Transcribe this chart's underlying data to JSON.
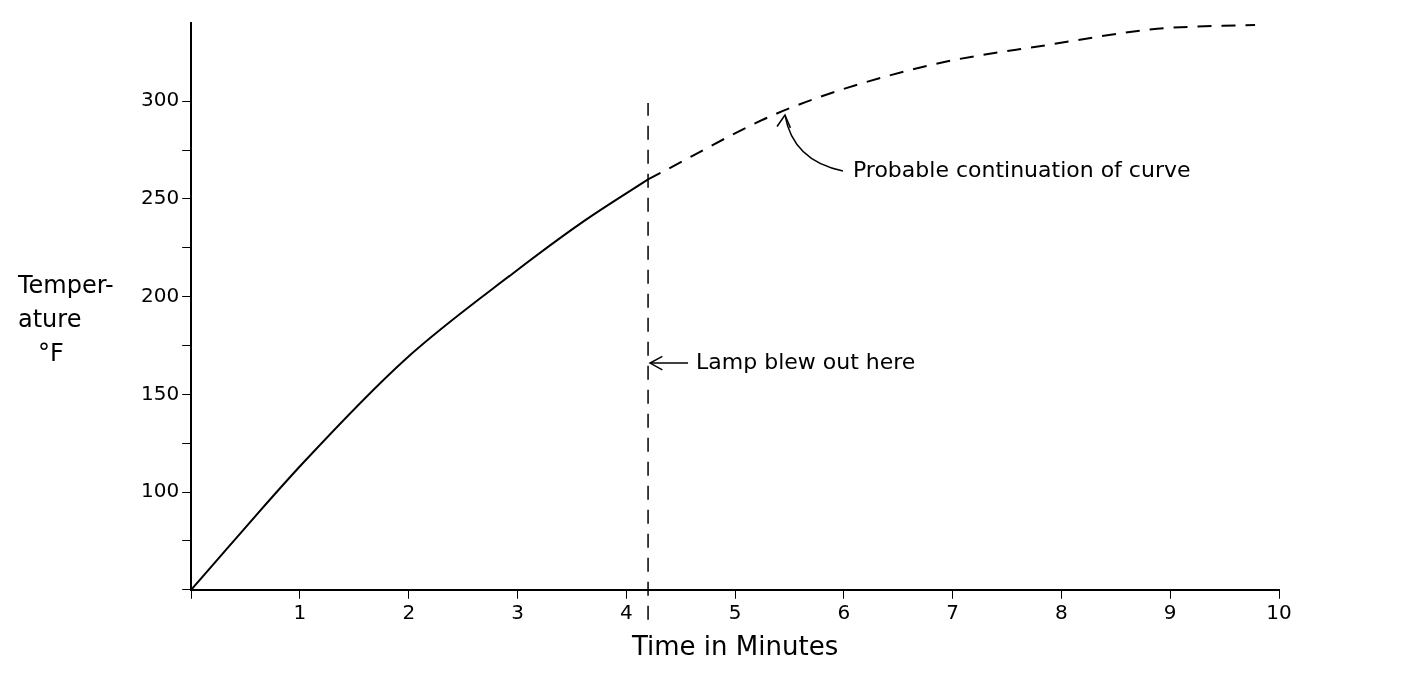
{
  "chart_data": {
    "type": "line",
    "xlabel": "Time in Minutes",
    "ylabel": "Temper- ature °F",
    "xlim": [
      0,
      10
    ],
    "xticks": [
      {
        "value": 0,
        "label": null
      },
      1,
      2,
      3,
      4,
      5,
      6,
      7,
      8,
      9,
      10
    ],
    "ylim": [
      50,
      340
    ],
    "yticks": [
      {
        "value": 50,
        "label": null
      },
      {
        "value": 75,
        "label": null
      },
      100,
      {
        "value": 125,
        "label": null
      },
      150,
      {
        "value": 175,
        "label": null
      },
      200,
      {
        "value": 225,
        "label": null
      },
      250,
      {
        "value": 275,
        "label": null
      },
      300
    ],
    "series": [
      {
        "color": "#000000",
        "line_style": "solid",
        "x": [
          0,
          1.03,
          1.97,
          2.96,
          3.62,
          4.2
        ],
        "values": [
          50,
          115,
          168,
          212,
          239,
          260
        ]
      },
      {
        "color": "#000000",
        "line_style": "dashed",
        "x": [
          4.2,
          5.44,
          6.76,
          7.9,
          8.88,
          9.78
        ],
        "values": [
          260,
          295,
          318,
          329,
          337,
          339
        ]
      }
    ],
    "ref_lines": [
      {
        "axis": "x",
        "value": 4.2,
        "label": "Lamp blew out here",
        "color": "#000000",
        "line_style": "dashed"
      }
    ],
    "annotations": [
      {
        "text": "Probable continuation of curve",
        "x": 5.44,
        "y": 295
      }
    ],
    "grid": false,
    "legend": false,
    "marker": "none"
  }
}
